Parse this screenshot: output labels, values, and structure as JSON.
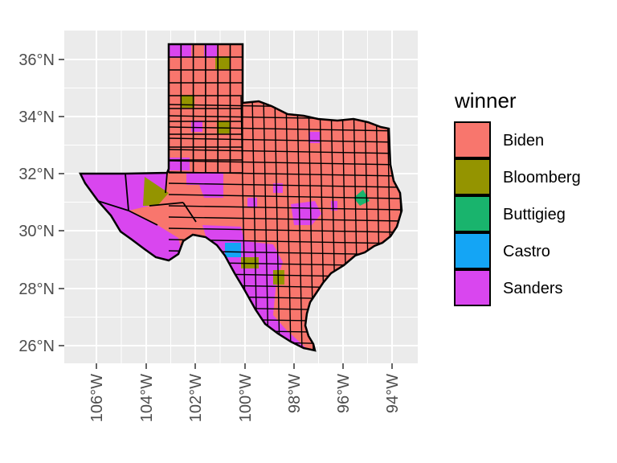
{
  "chart_data": {
    "type": "map",
    "x_ticks": [
      "106°W",
      "104°W",
      "102°W",
      "100°W",
      "98°W",
      "96°W",
      "94°W"
    ],
    "y_ticks": [
      "36°N",
      "34°N",
      "32°N",
      "30°N",
      "28°N",
      "26°N"
    ],
    "legend": {
      "title": "winner",
      "entries": [
        {
          "label": "Biden",
          "color": "#F8766D"
        },
        {
          "label": "Bloomberg",
          "color": "#A3A500"
        },
        {
          "label": "Buttigieg",
          "color": "#00BF7D"
        },
        {
          "label": "Castro",
          "color": "#00B0F6"
        },
        {
          "label": "Sanders",
          "color": "#E76BF3"
        }
      ]
    },
    "colors": {
      "Biden": "#F8766D",
      "Bloomberg": "#949400",
      "Buttigieg": "#19B46D",
      "Castro": "#14A5F5",
      "Sanders": "#D946EF"
    },
    "panel_background": "#EBEBEB",
    "grid": true,
    "legend_position": "right"
  }
}
